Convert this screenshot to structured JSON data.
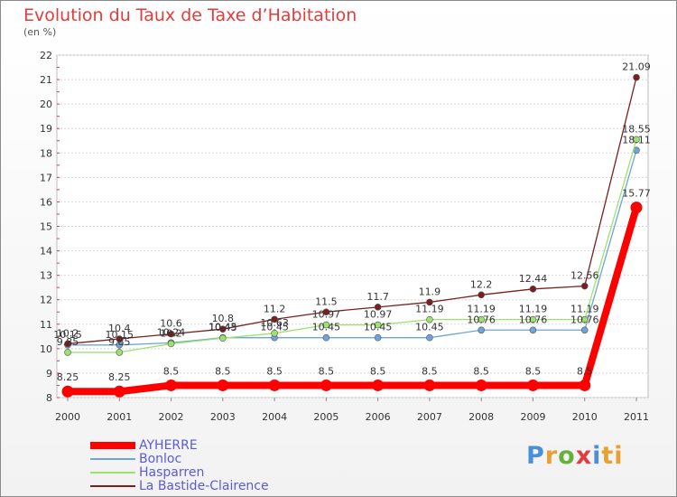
{
  "header": {
    "title": "Evolution du Taux de Taxe d’Habitation",
    "subtitle": "(en %)"
  },
  "logo": {
    "text": "Proxiti",
    "letters": [
      "P",
      "r",
      "o",
      "x",
      "i",
      "ti"
    ]
  },
  "chart_data": {
    "type": "line",
    "title": "Evolution du Taux de Taxe d’Habitation",
    "subtitle": "(en %)",
    "xlabel": "",
    "ylabel": "",
    "x": [
      "2000",
      "2001",
      "2002",
      "2003",
      "2004",
      "2005",
      "2006",
      "2007",
      "2008",
      "2009",
      "2010",
      "2011"
    ],
    "ylim": [
      8,
      22
    ],
    "yticks": [
      8,
      9,
      10,
      11,
      12,
      13,
      14,
      15,
      16,
      17,
      18,
      19,
      20,
      21,
      22
    ],
    "legend_position": "bottom-left",
    "series": [
      {
        "name": "AYHERRE",
        "color": "#ff0000",
        "values": [
          8.25,
          8.25,
          8.5,
          8.5,
          8.5,
          8.5,
          8.5,
          8.5,
          8.5,
          8.5,
          8.5,
          15.77
        ],
        "labels": [
          "8.25",
          "8.25",
          "8.5",
          "8.5",
          "8.5",
          "8.5",
          "8.5",
          "8.5",
          "8.5",
          "8.5",
          "8.5",
          "15.77"
        ]
      },
      {
        "name": "Bonloc",
        "color": "#6ea4d8",
        "values": [
          10.15,
          10.15,
          10.24,
          10.45,
          10.45,
          10.45,
          10.45,
          10.45,
          10.76,
          10.76,
          10.76,
          18.11
        ],
        "labels": [
          "10.15",
          "10.15",
          "10.24",
          "10.45",
          "10.45",
          "10.45",
          "10.45",
          "10.45",
          "10.76",
          "10.76",
          "10.76",
          "18.11"
        ]
      },
      {
        "name": "Hasparren",
        "color": "#9de26e",
        "values": [
          9.85,
          9.85,
          10.2,
          10.43,
          10.63,
          10.97,
          10.97,
          11.19,
          11.19,
          11.19,
          11.19,
          18.55
        ],
        "labels": [
          "9.85",
          "9.85",
          "10.2",
          "10.43",
          "10.63",
          "10.97",
          "10.97",
          "11.19",
          "11.19",
          "11.19",
          "11.19",
          "18.55"
        ]
      },
      {
        "name": "La Bastide-Clairence",
        "color": "#7a1f1f",
        "values": [
          10.2,
          10.4,
          10.6,
          10.8,
          11.2,
          11.5,
          11.7,
          11.9,
          12.2,
          12.44,
          12.56,
          21.09
        ],
        "labels": [
          "10.2",
          "10.4",
          "10.6",
          "10.8",
          "11.2",
          "11.5",
          "11.7",
          "11.9",
          "12.2",
          "12.44",
          "12.56",
          "21.09"
        ]
      }
    ]
  }
}
